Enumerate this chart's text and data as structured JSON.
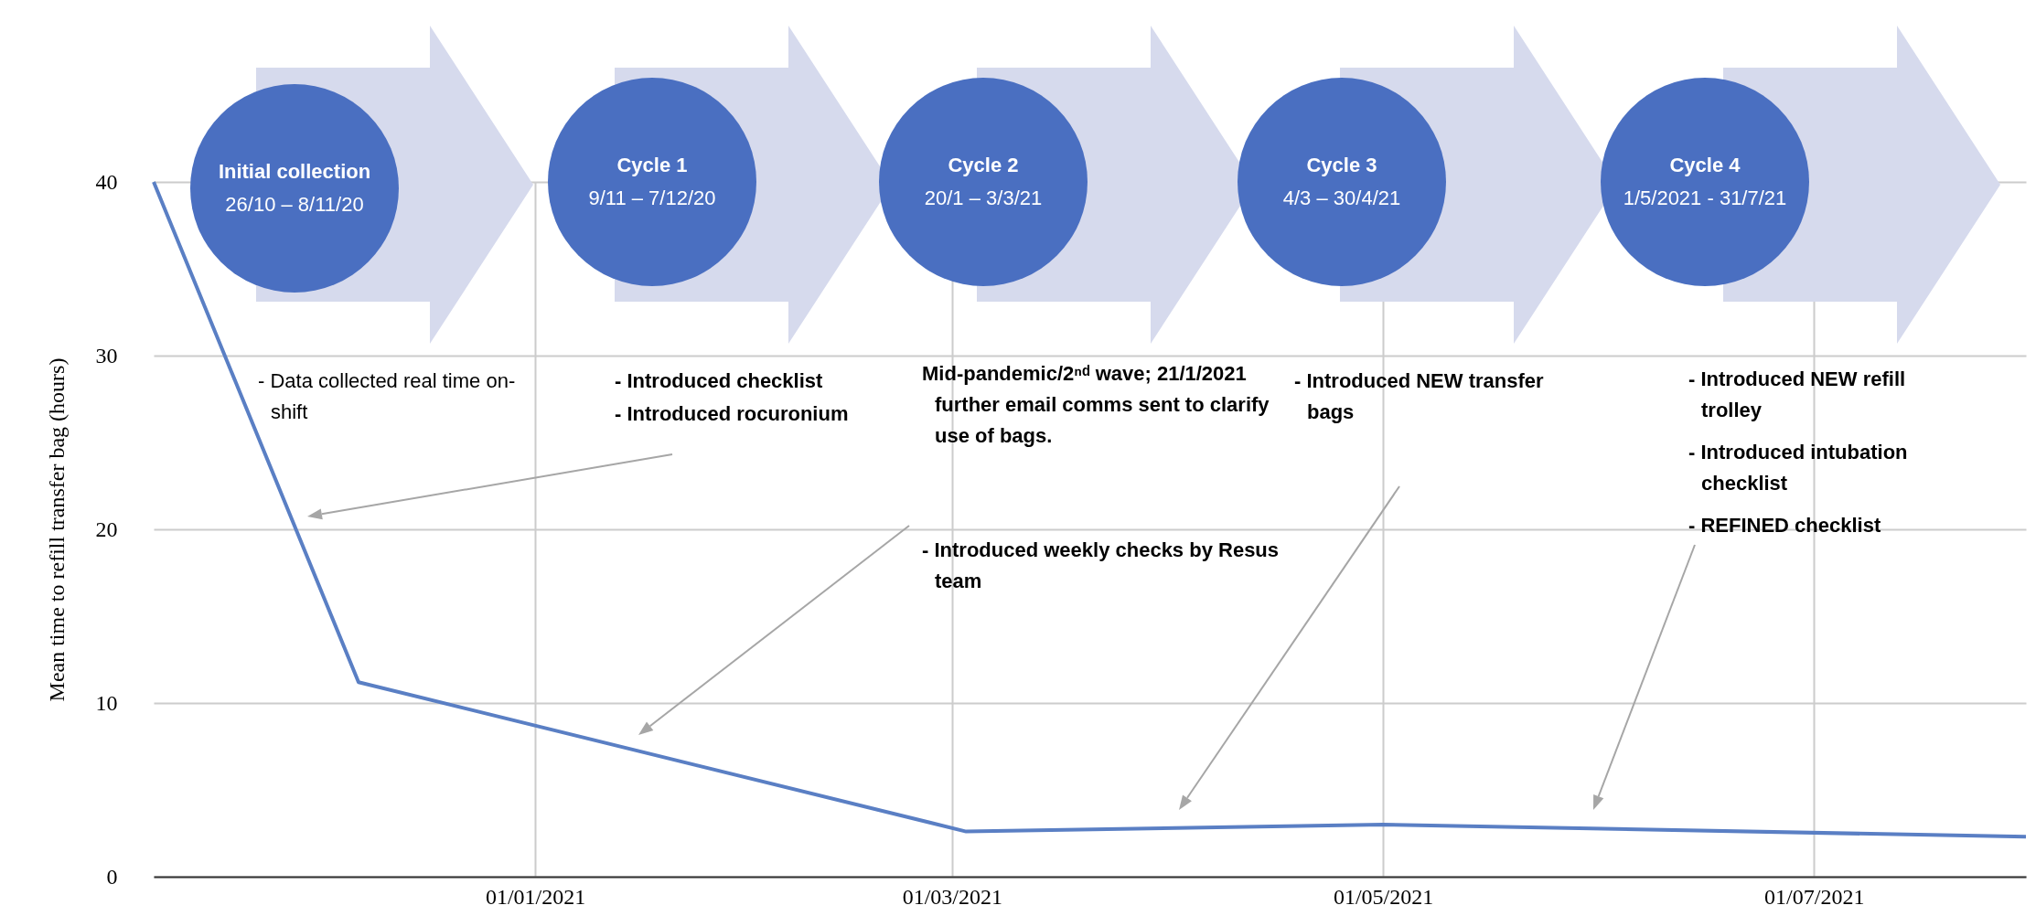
{
  "chart_data": {
    "type": "line",
    "ylabel": "Mean time to refill transfer bag (hours)",
    "x": [
      "2020-11-08",
      "2020-12-07",
      "2021-03-03",
      "2021-05-01",
      "2021-07-31"
    ],
    "series": [
      {
        "color": "#5a7fc4",
        "values": [
          40,
          11.2,
          2.6,
          3.0,
          2.3
        ]
      }
    ],
    "xlim": [
      "2020-11-08",
      "2021-07-31"
    ],
    "xticks": [
      {
        "value": "2021-01-01",
        "label": "01/01/2021"
      },
      {
        "value": "2021-03-01",
        "label": "01/03/2021"
      },
      {
        "value": "2021-05-01",
        "label": "01/05/2021"
      },
      {
        "value": "2021-07-01",
        "label": "01/07/2021"
      }
    ],
    "ylim": [
      0,
      40
    ],
    "yticks": [
      0,
      10,
      20,
      30,
      40
    ],
    "grid": true,
    "legend": false,
    "marker": "none",
    "line_style": "solid",
    "annotations": [
      "Initial collection",
      "26/10 – 8/11/20",
      "Cycle 1",
      "9/11 – 7/12/20",
      "Cycle 2",
      "20/1 – 3/3/21",
      "Cycle 3",
      "4/3 – 30/4/21",
      "Cycle 4",
      "1/5/2021 - 31/7/21",
      "- Data collected real time on-shift",
      "- Introduced checklist",
      "- Introduced rocuronium",
      "Mid-pandemic/2ⁿᵈ wave; 21/1/2021 further email comms sent to clarify  use of bags.",
      "- Introduced weekly checks by Resus team",
      "- Introduced NEW transfer bags",
      "- Introduced NEW refill trolley",
      "- Introduced intubation checklist",
      "- REFINED checklist"
    ]
  }
}
